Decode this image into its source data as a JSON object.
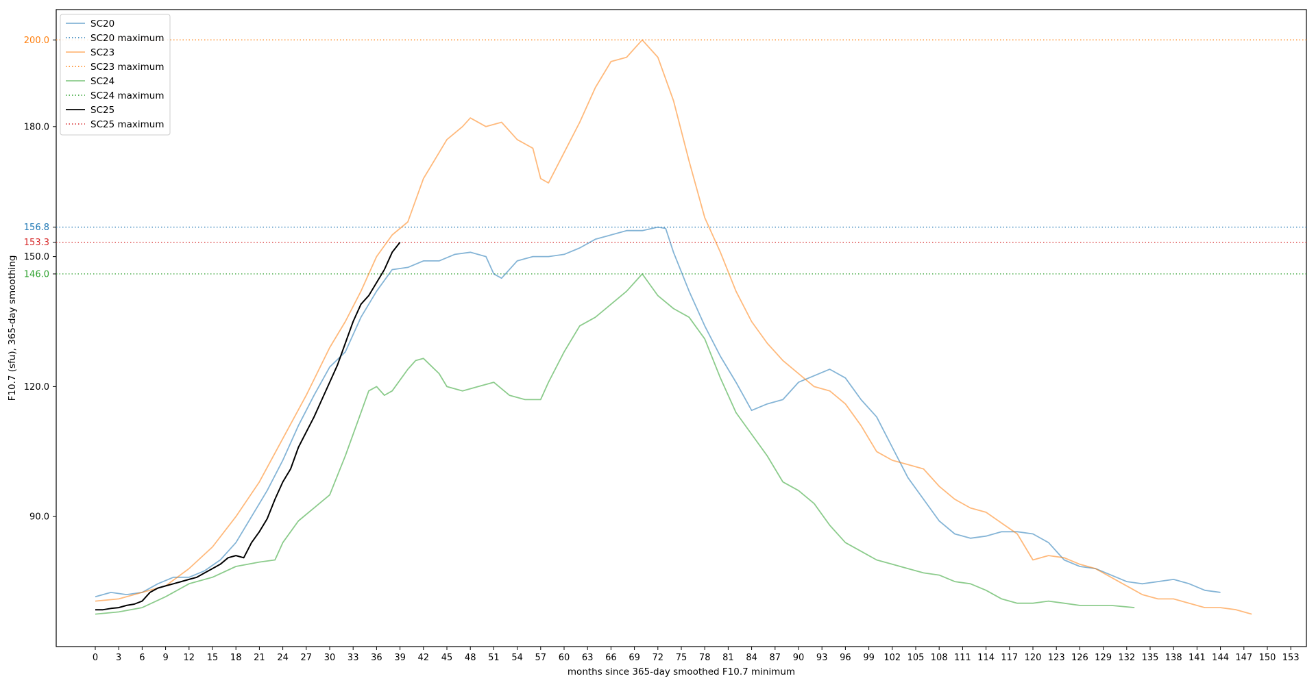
{
  "chart_data": {
    "type": "line",
    "title": "",
    "xlabel": "months since 365-day smoothed F10.7 minimum",
    "ylabel": "F10.7 (sfu), 365-day smoothing",
    "xlim": [
      -5,
      155
    ],
    "ylim": [
      60,
      207
    ],
    "x_ticks": [
      0,
      3,
      6,
      9,
      12,
      15,
      18,
      21,
      24,
      27,
      30,
      33,
      36,
      39,
      42,
      45,
      48,
      51,
      54,
      57,
      60,
      63,
      66,
      69,
      72,
      75,
      78,
      81,
      84,
      87,
      90,
      93,
      96,
      99,
      102,
      105,
      108,
      111,
      114,
      117,
      120,
      123,
      126,
      129,
      132,
      135,
      138,
      141,
      144,
      147,
      150,
      153
    ],
    "y_ticks": [
      {
        "value": 90.0,
        "label": "90.0",
        "color": "#000000"
      },
      {
        "value": 120.0,
        "label": "120.0",
        "color": "#000000"
      },
      {
        "value": 146.0,
        "label": "146.0",
        "color": "#2ca02c"
      },
      {
        "value": 150.0,
        "label": "150.0",
        "color": "#000000"
      },
      {
        "value": 153.3,
        "label": "153.3",
        "color": "#d62728"
      },
      {
        "value": 156.8,
        "label": "156.8",
        "color": "#1f77b4"
      },
      {
        "value": 180.0,
        "label": "180.0",
        "color": "#000000"
      },
      {
        "value": 200.0,
        "label": "200.0",
        "color": "#ff7f0e"
      }
    ],
    "grid": false,
    "legend_position": "top-left",
    "series": [
      {
        "name": "SC20",
        "color": "#1f77b4",
        "opacity": 0.55,
        "x": [
          0,
          2,
          4,
          6,
          8,
          10,
          12,
          14,
          16,
          18,
          20,
          22,
          24,
          26,
          28,
          30,
          32,
          34,
          36,
          38,
          40,
          42,
          44,
          46,
          48,
          50,
          51,
          52,
          54,
          56,
          58,
          60,
          62,
          64,
          66,
          68,
          70,
          72,
          73,
          74,
          76,
          78,
          80,
          82,
          84,
          86,
          88,
          90,
          92,
          94,
          96,
          98,
          100,
          102,
          104,
          106,
          108,
          110,
          112,
          114,
          116,
          118,
          120,
          122,
          124,
          126,
          128,
          130,
          132,
          134,
          136,
          138,
          140,
          142,
          144
        ],
        "values": [
          71.5,
          72.5,
          72,
          72.5,
          74.5,
          76,
          76,
          77.5,
          80,
          84,
          90,
          96,
          103,
          111,
          118,
          124.5,
          128,
          136,
          142,
          147,
          147.5,
          149,
          149,
          150.5,
          151,
          150,
          146,
          145,
          149,
          150,
          150,
          150.5,
          152,
          154,
          155,
          156,
          156,
          156.8,
          156.5,
          151,
          142,
          134,
          127,
          121,
          114.5,
          116,
          117,
          121,
          122.5,
          124,
          122,
          117,
          113,
          106,
          99,
          94,
          89,
          86,
          85,
          85.5,
          86.5,
          86.5,
          86,
          84,
          80,
          78.5,
          78,
          76.5,
          75,
          74.5,
          75,
          75.5,
          74.5,
          73,
          72.5
        ]
      },
      {
        "name": "SC23",
        "color": "#ff7f0e",
        "opacity": 0.55,
        "x": [
          0,
          3,
          6,
          9,
          12,
          15,
          18,
          21,
          24,
          27,
          30,
          32,
          34,
          36,
          38,
          40,
          42,
          44,
          45,
          47,
          48,
          50,
          52,
          54,
          56,
          57,
          58,
          60,
          62,
          64,
          66,
          68,
          69,
          70,
          72,
          74,
          76,
          78,
          80,
          82,
          84,
          86,
          88,
          90,
          92,
          94,
          96,
          98,
          100,
          102,
          104,
          106,
          108,
          110,
          112,
          114,
          116,
          118,
          120,
          122,
          124,
          126,
          128,
          130,
          132,
          134,
          136,
          138,
          140,
          142,
          144,
          146,
          148
        ],
        "values": [
          70.5,
          71,
          72.5,
          74,
          78,
          83,
          90,
          98,
          108,
          118,
          129,
          135,
          142,
          150,
          155,
          158,
          168,
          174,
          177,
          180,
          182,
          180,
          181,
          177,
          175,
          168,
          167,
          174,
          181,
          189,
          195,
          196,
          198,
          200,
          196,
          186,
          172,
          159,
          151,
          142,
          135,
          130,
          126,
          123,
          120,
          119,
          116,
          111,
          105,
          103,
          102,
          101,
          97,
          94,
          92,
          91,
          88.5,
          86,
          80,
          81,
          80.5,
          79,
          78,
          76,
          74,
          72,
          71,
          71,
          70,
          69,
          69,
          68.5,
          67.5
        ]
      },
      {
        "name": "SC24",
        "color": "#2ca02c",
        "opacity": 0.55,
        "x": [
          0,
          3,
          6,
          9,
          12,
          15,
          18,
          21,
          23,
          24,
          26,
          28,
          30,
          32,
          34,
          35,
          36,
          37,
          38,
          40,
          41,
          42,
          44,
          45,
          47,
          49,
          51,
          53,
          55,
          57,
          58,
          60,
          62,
          64,
          66,
          68,
          69,
          70,
          72,
          74,
          76,
          78,
          80,
          82,
          84,
          86,
          88,
          90,
          92,
          94,
          96,
          98,
          100,
          102,
          104,
          106,
          108,
          110,
          112,
          114,
          116,
          118,
          120,
          122,
          124,
          126,
          128,
          130,
          133
        ],
        "values": [
          67.5,
          68,
          69,
          71.5,
          74.5,
          76,
          78.5,
          79.5,
          80,
          84,
          89,
          92,
          95,
          104,
          114,
          119,
          120,
          118,
          119,
          124,
          126,
          126.5,
          123,
          120,
          119,
          120,
          121,
          118,
          117,
          117,
          121,
          128,
          134,
          136,
          139,
          142,
          144,
          146,
          141,
          138,
          136,
          131,
          122,
          114,
          109,
          104,
          98,
          96,
          93,
          88,
          84,
          82,
          80,
          79,
          78,
          77,
          76.5,
          75,
          74.5,
          73,
          71,
          70,
          70,
          70.5,
          70,
          69.5,
          69.5,
          69.5,
          69
        ]
      },
      {
        "name": "SC25",
        "color": "#000000",
        "opacity": 1,
        "x": [
          0,
          1,
          2,
          3,
          4,
          5,
          6,
          7,
          8,
          9,
          10,
          11,
          12,
          13,
          14,
          15,
          16,
          17,
          18,
          19,
          20,
          21,
          22,
          23,
          24,
          25,
          26,
          27,
          28,
          29,
          30,
          31,
          32,
          33,
          34,
          35,
          36,
          37,
          38,
          39
        ],
        "values": [
          68.5,
          68.5,
          68.8,
          69,
          69.5,
          69.8,
          70.5,
          72.5,
          73.5,
          74,
          74.5,
          75,
          75.5,
          76,
          77,
          78,
          79,
          80.5,
          81,
          80.5,
          84,
          86.5,
          89.5,
          94,
          98,
          101,
          106,
          109.5,
          113,
          117,
          121,
          125,
          130,
          135,
          139,
          141,
          144,
          147,
          151,
          153.3
        ]
      }
    ],
    "reference_lines": [
      {
        "name": "SC20 maximum",
        "y": 156.8,
        "color": "#1f77b4"
      },
      {
        "name": "SC23 maximum",
        "y": 200.0,
        "color": "#ff7f0e"
      },
      {
        "name": "SC24 maximum",
        "y": 146.0,
        "color": "#2ca02c"
      },
      {
        "name": "SC25 maximum",
        "y": 153.3,
        "color": "#d62728"
      }
    ],
    "legend": [
      {
        "label": "SC20",
        "style": "solid",
        "color": "#1f77b4",
        "opacity": 0.55
      },
      {
        "label": "SC20 maximum",
        "style": "dotted",
        "color": "#1f77b4",
        "opacity": 1
      },
      {
        "label": "SC23",
        "style": "solid",
        "color": "#ff7f0e",
        "opacity": 0.55
      },
      {
        "label": "SC23 maximum",
        "style": "dotted",
        "color": "#ff7f0e",
        "opacity": 1
      },
      {
        "label": "SC24",
        "style": "solid",
        "color": "#2ca02c",
        "opacity": 0.55
      },
      {
        "label": "SC24 maximum",
        "style": "dotted",
        "color": "#2ca02c",
        "opacity": 1
      },
      {
        "label": "SC25",
        "style": "solid",
        "color": "#000000",
        "opacity": 1
      },
      {
        "label": "SC25 maximum",
        "style": "dotted",
        "color": "#d62728",
        "opacity": 1
      }
    ]
  }
}
